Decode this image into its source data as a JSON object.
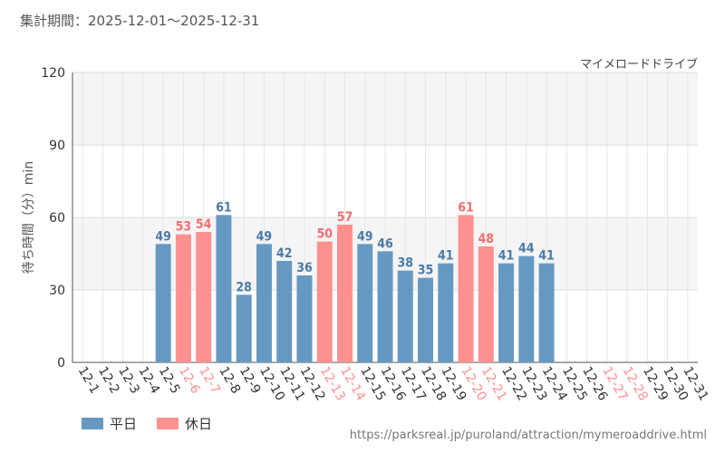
{
  "period_label": "集計期間：2025-12-01〜2025-12-31",
  "attraction_name": "マイメロードドライブ",
  "source_url": "https://parksreal.jp/puroland/attraction/mymeroaddrive.html",
  "colors": {
    "weekday": "#6699c2",
    "holiday": "#ff9090",
    "weekday_text": "#4a7aa6",
    "holiday_text": "#f07070"
  },
  "legend": {
    "weekday": "平日",
    "holiday": "休日"
  },
  "chart_data": {
    "type": "bar",
    "title": "",
    "xlabel": "",
    "ylabel": "待ち時間（分）min",
    "ylim": [
      0,
      120
    ],
    "yticks": [
      0,
      30,
      60,
      90,
      120
    ],
    "grid": true,
    "categories": [
      "12-1",
      "12-2",
      "12-3",
      "12-4",
      "12-5",
      "12-6",
      "12-7",
      "12-8",
      "12-9",
      "12-10",
      "12-11",
      "12-12",
      "12-13",
      "12-14",
      "12-15",
      "12-16",
      "12-17",
      "12-18",
      "12-19",
      "12-20",
      "12-21",
      "12-22",
      "12-23",
      "12-24",
      "12-25",
      "12-26",
      "12-27",
      "12-28",
      "12-29",
      "12-30",
      "12-31"
    ],
    "day_types": [
      "weekday",
      "weekday",
      "weekday",
      "weekday",
      "weekday",
      "holiday",
      "holiday",
      "weekday",
      "weekday",
      "weekday",
      "weekday",
      "weekday",
      "holiday",
      "holiday",
      "weekday",
      "weekday",
      "weekday",
      "weekday",
      "weekday",
      "holiday",
      "holiday",
      "weekday",
      "weekday",
      "weekday",
      "weekday",
      "weekday",
      "holiday",
      "holiday",
      "weekday",
      "weekday",
      "weekday"
    ],
    "values": [
      null,
      null,
      null,
      null,
      49,
      53,
      54,
      61,
      28,
      49,
      42,
      36,
      50,
      57,
      49,
      46,
      38,
      35,
      41,
      61,
      48,
      41,
      44,
      41,
      null,
      null,
      null,
      null,
      null,
      null,
      null
    ]
  }
}
